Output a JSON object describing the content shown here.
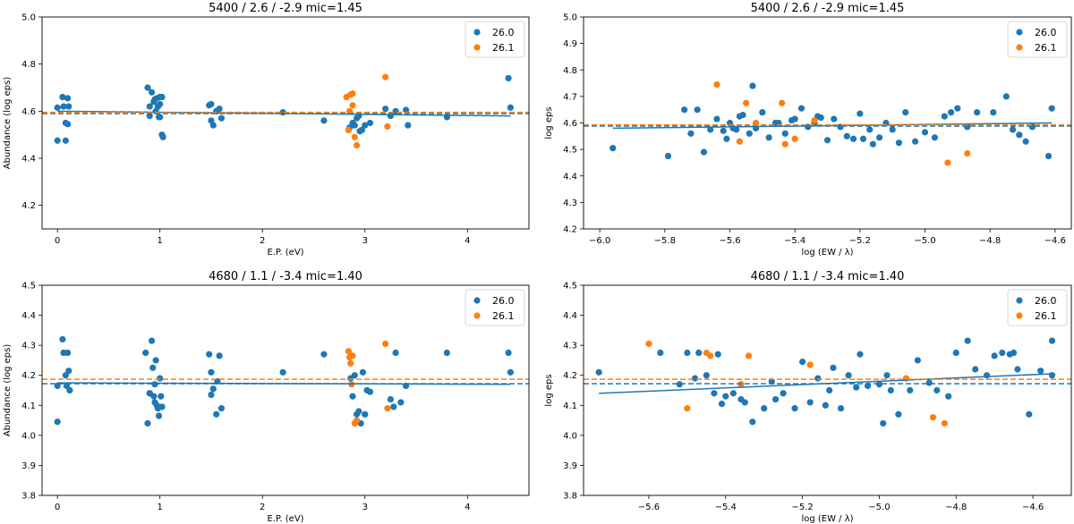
{
  "colors": {
    "fe1": "#1f77b4",
    "fe2": "#ff7f0e"
  },
  "chart_data": [
    {
      "type": "scatter",
      "title": "5400 / 2.6 / -2.9   mic=1.45",
      "xlabel": "E.P. (eV)",
      "ylabel": "Abundance (log eps)",
      "xlim": [
        -0.15,
        4.6
      ],
      "ylim": [
        4.1,
        5.0
      ],
      "xticks": [
        0,
        1,
        2,
        3,
        4
      ],
      "yticks": [
        4.2,
        4.4,
        4.6,
        4.8,
        5.0
      ],
      "ytick_labels": [
        "4.2",
        "4.4",
        "4.6",
        "4.8",
        "5.0"
      ],
      "legend": {
        "position": "top-right",
        "entries": [
          "26.0",
          "26.1"
        ]
      },
      "series": [
        {
          "name": "26.0",
          "x": [
            0.0,
            0.0,
            0.05,
            0.06,
            0.08,
            0.08,
            0.1,
            0.1,
            0.11,
            0.88,
            0.9,
            0.9,
            0.92,
            0.94,
            0.95,
            0.96,
            0.97,
            0.98,
            1.0,
            1.0,
            1.02,
            1.02,
            1.03,
            1.0,
            0.99,
            1.48,
            1.5,
            1.5,
            1.52,
            1.55,
            1.58,
            1.6,
            2.2,
            2.6,
            2.85,
            2.88,
            2.9,
            2.92,
            2.94,
            2.95,
            2.97,
            3.0,
            3.05,
            3.2,
            3.25,
            3.3,
            3.4,
            3.42,
            3.8,
            4.4,
            4.42
          ],
          "y": [
            4.615,
            4.475,
            4.66,
            4.62,
            4.55,
            4.475,
            4.655,
            4.545,
            4.62,
            4.7,
            4.58,
            4.62,
            4.68,
            4.64,
            4.65,
            4.6,
            4.655,
            4.62,
            4.66,
            4.575,
            4.66,
            4.5,
            4.49,
            4.63,
            4.575,
            4.625,
            4.63,
            4.56,
            4.54,
            4.6,
            4.61,
            4.57,
            4.595,
            4.56,
            4.53,
            4.55,
            4.54,
            4.57,
            4.58,
            4.515,
            4.52,
            4.54,
            4.55,
            4.61,
            4.58,
            4.6,
            4.605,
            4.54,
            4.575,
            4.74,
            4.615
          ]
        },
        {
          "name": "26.1",
          "x": [
            2.82,
            2.84,
            2.86,
            2.88,
            2.88,
            2.9,
            2.92,
            2.85,
            3.2,
            3.22
          ],
          "y": [
            4.66,
            4.52,
            4.67,
            4.625,
            4.675,
            4.49,
            4.455,
            4.6,
            4.745,
            4.535
          ]
        }
      ],
      "fit_lines": [
        {
          "series": "26.0",
          "style": "solid",
          "x": [
            0.0,
            4.42
          ],
          "y": [
            4.6,
            4.58
          ]
        },
        {
          "series": "26.0",
          "style": "dashed",
          "y": 4.59
        },
        {
          "series": "26.1",
          "style": "dashed",
          "y": 4.595
        }
      ]
    },
    {
      "type": "scatter",
      "title": "5400 / 2.6 / -2.9   mic=1.45",
      "xlabel": "log (EW / λ)",
      "ylabel": "log eps",
      "xlim": [
        -6.05,
        -4.55
      ],
      "ylim": [
        4.2,
        5.0
      ],
      "xticks": [
        -6.0,
        -5.8,
        -5.6,
        -5.4,
        -5.2,
        -5.0,
        -4.8,
        -4.6
      ],
      "xtick_labels": [
        "−6.0",
        "−5.8",
        "−5.6",
        "−5.4",
        "−5.2",
        "−5.0",
        "−4.8",
        "−4.6"
      ],
      "yticks": [
        4.2,
        4.3,
        4.4,
        4.5,
        4.6,
        4.7,
        4.8,
        4.9,
        5.0
      ],
      "ytick_labels": [
        "4.2",
        "4.3",
        "4.4",
        "4.5",
        "4.6",
        "4.7",
        "4.8",
        "4.9",
        "5.0"
      ],
      "legend": {
        "position": "top-right",
        "entries": [
          "26.0",
          "26.1"
        ]
      },
      "series": [
        {
          "name": "26.0",
          "x": [
            -5.96,
            -5.79,
            -5.74,
            -5.72,
            -5.7,
            -5.68,
            -5.66,
            -5.64,
            -5.62,
            -5.61,
            -5.6,
            -5.59,
            -5.58,
            -5.57,
            -5.56,
            -5.54,
            -5.53,
            -5.52,
            -5.5,
            -5.48,
            -5.46,
            -5.45,
            -5.43,
            -5.41,
            -5.4,
            -5.38,
            -5.36,
            -5.34,
            -5.33,
            -5.32,
            -5.3,
            -5.28,
            -5.26,
            -5.24,
            -5.22,
            -5.2,
            -5.19,
            -5.17,
            -5.16,
            -5.14,
            -5.12,
            -5.1,
            -5.08,
            -5.06,
            -5.03,
            -5.0,
            -4.97,
            -4.94,
            -4.92,
            -4.9,
            -4.87,
            -4.84,
            -4.79,
            -4.75,
            -4.73,
            -4.71,
            -4.69,
            -4.67,
            -4.62,
            -4.61
          ],
          "y": [
            4.505,
            4.475,
            4.65,
            4.56,
            4.65,
            4.49,
            4.575,
            4.615,
            4.57,
            4.54,
            4.6,
            4.58,
            4.575,
            4.625,
            4.63,
            4.56,
            4.74,
            4.58,
            4.64,
            4.545,
            4.6,
            4.6,
            4.56,
            4.61,
            4.615,
            4.655,
            4.585,
            4.6,
            4.625,
            4.62,
            4.535,
            4.615,
            4.585,
            4.55,
            4.54,
            4.635,
            4.54,
            4.575,
            4.52,
            4.545,
            4.6,
            4.575,
            4.525,
            4.64,
            4.53,
            4.565,
            4.545,
            4.625,
            4.64,
            4.655,
            4.585,
            4.64,
            4.64,
            4.7,
            4.575,
            4.555,
            4.53,
            4.585,
            4.475,
            4.655
          ]
        },
        {
          "name": "26.1",
          "x": [
            -5.64,
            -5.57,
            -5.55,
            -5.52,
            -5.44,
            -5.43,
            -5.4,
            -5.34,
            -4.93,
            -4.87
          ],
          "y": [
            4.745,
            4.53,
            4.675,
            4.6,
            4.675,
            4.52,
            4.54,
            4.61,
            4.45,
            4.485
          ]
        }
      ],
      "fit_lines": [
        {
          "series": "26.0",
          "style": "solid",
          "x": [
            -5.96,
            -4.61
          ],
          "y": [
            4.58,
            4.6
          ]
        },
        {
          "series": "26.0",
          "style": "dashed",
          "y": 4.588
        },
        {
          "series": "26.1",
          "style": "dashed",
          "y": 4.593
        }
      ]
    },
    {
      "type": "scatter",
      "title": "4680 / 1.1 / -3.4   mic=1.40",
      "xlabel": "E.P. (eV)",
      "ylabel": "Abundance (log eps)",
      "xlim": [
        -0.15,
        4.6
      ],
      "ylim": [
        3.8,
        4.5
      ],
      "xticks": [
        0,
        1,
        2,
        3,
        4
      ],
      "yticks": [
        3.8,
        3.9,
        4.0,
        4.1,
        4.2,
        4.3,
        4.4,
        4.5
      ],
      "ytick_labels": [
        "3.8",
        "3.9",
        "4.0",
        "4.1",
        "4.2",
        "4.3",
        "4.4",
        "4.5"
      ],
      "legend": {
        "position": "top-right",
        "entries": [
          "26.0",
          "26.1"
        ]
      },
      "series": [
        {
          "name": "26.0",
          "x": [
            0.0,
            0.0,
            0.05,
            0.06,
            0.08,
            0.09,
            0.1,
            0.11,
            0.12,
            0.86,
            0.88,
            0.9,
            0.92,
            0.93,
            0.94,
            0.95,
            0.96,
            0.97,
            0.98,
            0.99,
            1.0,
            1.01,
            1.02,
            0.9,
            0.95,
            1.48,
            1.5,
            1.5,
            1.52,
            1.55,
            1.58,
            1.6,
            1.56,
            2.2,
            2.6,
            2.86,
            2.88,
            2.9,
            2.92,
            2.94,
            2.96,
            2.98,
            3.0,
            3.02,
            3.05,
            3.25,
            3.28,
            3.3,
            3.35,
            3.4,
            3.8,
            4.4,
            4.42
          ],
          "y": [
            4.165,
            4.045,
            4.32,
            4.275,
            4.2,
            4.165,
            4.275,
            4.215,
            4.15,
            4.275,
            4.04,
            4.14,
            4.315,
            4.225,
            4.13,
            4.17,
            4.25,
            4.1,
            4.09,
            4.065,
            4.19,
            4.13,
            4.095,
            4.14,
            4.11,
            4.27,
            4.135,
            4.21,
            4.155,
            4.07,
            4.265,
            4.09,
            4.18,
            4.21,
            4.27,
            4.19,
            4.13,
            4.2,
            4.07,
            4.08,
            4.04,
            4.21,
            4.07,
            4.15,
            4.145,
            4.12,
            4.095,
            4.275,
            4.11,
            4.165,
            4.275,
            4.275,
            4.21
          ]
        },
        {
          "name": "26.1",
          "x": [
            2.84,
            2.85,
            2.86,
            2.87,
            2.88,
            2.9,
            2.92,
            3.2,
            3.22
          ],
          "y": [
            4.28,
            4.26,
            4.24,
            4.17,
            4.265,
            4.04,
            4.05,
            4.305,
            4.09
          ]
        }
      ],
      "fit_lines": [
        {
          "series": "26.0",
          "style": "solid",
          "x": [
            0.0,
            4.42
          ],
          "y": [
            4.175,
            4.17
          ]
        },
        {
          "series": "26.0",
          "style": "dashed",
          "y": 4.172
        },
        {
          "series": "26.1",
          "style": "dashed",
          "y": 4.187
        }
      ]
    },
    {
      "type": "scatter",
      "title": "4680 / 1.1 / -3.4   mic=1.40",
      "xlabel": "log (EW / λ)",
      "ylabel": "log eps",
      "xlim": [
        -5.77,
        -4.5
      ],
      "ylim": [
        3.8,
        4.5
      ],
      "xticks": [
        -5.6,
        -5.4,
        -5.2,
        -5.0,
        -4.8,
        -4.6
      ],
      "xtick_labels": [
        "−5.6",
        "−5.4",
        "−5.2",
        "−5.0",
        "−4.8",
        "−4.6"
      ],
      "yticks": [
        3.8,
        3.9,
        4.0,
        4.1,
        4.2,
        4.3,
        4.4,
        4.5
      ],
      "ytick_labels": [
        "3.8",
        "3.9",
        "4.0",
        "4.1",
        "4.2",
        "4.3",
        "4.4",
        "4.5"
      ],
      "legend": {
        "position": "top-right",
        "entries": [
          "26.0",
          "26.1"
        ]
      },
      "series": [
        {
          "name": "26.0",
          "x": [
            -5.73,
            -5.57,
            -5.52,
            -5.5,
            -5.48,
            -5.47,
            -5.45,
            -5.43,
            -5.42,
            -5.41,
            -5.4,
            -5.38,
            -5.36,
            -5.35,
            -5.33,
            -5.3,
            -5.28,
            -5.27,
            -5.25,
            -5.22,
            -5.2,
            -5.18,
            -5.16,
            -5.14,
            -5.13,
            -5.12,
            -5.1,
            -5.08,
            -5.06,
            -5.05,
            -5.03,
            -5.0,
            -4.99,
            -4.98,
            -4.97,
            -4.95,
            -4.92,
            -4.9,
            -4.87,
            -4.85,
            -4.82,
            -4.8,
            -4.77,
            -4.75,
            -4.72,
            -4.7,
            -4.68,
            -4.66,
            -4.65,
            -4.64,
            -4.61,
            -4.58,
            -4.55,
            -4.55
          ],
          "y": [
            4.21,
            4.275,
            4.17,
            4.275,
            4.19,
            4.275,
            4.2,
            4.14,
            4.27,
            4.105,
            4.13,
            4.14,
            4.12,
            4.11,
            4.045,
            4.09,
            4.18,
            4.12,
            4.14,
            4.09,
            4.245,
            4.11,
            4.19,
            4.1,
            4.15,
            4.225,
            4.09,
            4.2,
            4.16,
            4.27,
            4.165,
            4.17,
            4.04,
            4.2,
            4.15,
            4.07,
            4.15,
            4.25,
            4.175,
            4.15,
            4.13,
            4.275,
            4.315,
            4.22,
            4.2,
            4.265,
            4.275,
            4.27,
            4.275,
            4.22,
            4.07,
            4.215,
            4.315,
            4.2
          ]
        },
        {
          "name": "26.1",
          "x": [
            -5.6,
            -5.5,
            -5.45,
            -5.44,
            -5.36,
            -5.34,
            -5.18,
            -4.93,
            -4.86,
            -4.83
          ],
          "y": [
            4.305,
            4.09,
            4.275,
            4.265,
            4.17,
            4.265,
            4.235,
            4.19,
            4.06,
            4.04
          ]
        }
      ],
      "fit_lines": [
        {
          "series": "26.0",
          "style": "solid",
          "x": [
            -5.73,
            -4.55
          ],
          "y": [
            4.14,
            4.205
          ]
        },
        {
          "series": "26.0",
          "style": "dashed",
          "y": 4.172
        },
        {
          "series": "26.1",
          "style": "dashed",
          "y": 4.187
        }
      ]
    }
  ]
}
